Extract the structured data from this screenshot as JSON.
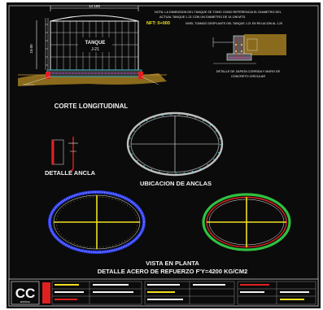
{
  "colors": {
    "background": "#0b0b0b",
    "border": "#bfbfbf",
    "white": "#f2f2f2",
    "yellow": "#f0e020",
    "red": "#e02020",
    "magenta": "#e040e0",
    "cyan": "#20c8d8",
    "green": "#30c040",
    "blue": "#2838e8",
    "orange": "#d0a040",
    "soil": "#8a6a1c",
    "gray": "#8c8c8c"
  },
  "notes": {
    "line1": "NOTA: LA DIMENSION DEL TANQUE SE TOMO COMO REFERENCIA EL DIAMETRO DEL",
    "line2": "ACTUAL TANQUE J-21 CON UN DIAMETRO DE 14.196 MTS.",
    "nft_label": "NFT: 0+000",
    "nft_text": "NIVEL TOMADO DESPLANTE DEL TANQUE J-21 EN RELACION AL J-25"
  },
  "tank": {
    "label_line1": "TANQUE",
    "label_line2": "J-21",
    "dim_top": "14 196",
    "dim_side": "10.00"
  },
  "titles": {
    "corte": "CORTE LONGITUDINAL",
    "detalle_zapata_line1": "DETALLE DE ZAPATA CORRIDA Y MURO DE",
    "detalle_zapata_line2": "CONCRETO CIRCULAR",
    "detalle_ancla": "DETALLE ANCLA",
    "ubicacion": "UBICACION DE ANCLAS",
    "vista_planta": "VISTA EN PLANTA",
    "detalle_acero": "DETALLE ACERO DE REFUERZO F'Y=4200 KG/CM2"
  },
  "title_block": {
    "logo_text": "CC",
    "logo_caption": "EMPRESA"
  }
}
